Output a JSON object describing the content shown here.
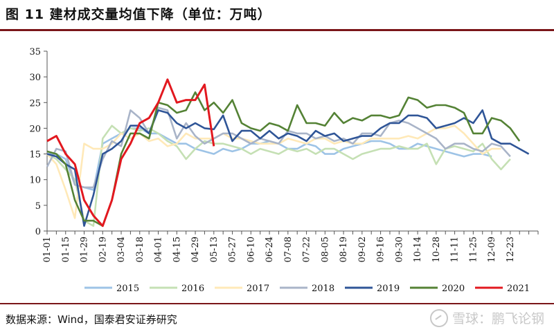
{
  "figure": {
    "title": "图 11  建材成交量均值下降（单位：万吨）",
    "source": "数据来源：Wind，国泰君安证券研究",
    "watermark": "雪球：鹏飞论钢"
  },
  "chart_data": {
    "type": "line",
    "title": "",
    "xlabel": "",
    "ylabel": "",
    "ylim": [
      0,
      35
    ],
    "yticks": [
      0,
      5,
      10,
      15,
      20,
      25,
      30,
      35
    ],
    "x_tick_labels": [
      "01-01",
      "01-15",
      "01-29",
      "02-19",
      "03-04",
      "03-18",
      "04-01",
      "04-15",
      "04-29",
      "05-13",
      "05-27",
      "06-10",
      "06-24",
      "07-08",
      "07-22",
      "08-05",
      "08-19",
      "09-02",
      "09-16",
      "09-30",
      "10-14",
      "10-28",
      "11-11",
      "11-25",
      "12-09",
      "12-23"
    ],
    "grid": false,
    "legend_position": "bottom",
    "series": [
      {
        "name": "2015",
        "color": "#9dc3e6",
        "values": [
          15,
          15,
          14,
          9,
          8.5,
          8,
          17,
          18,
          19,
          20,
          20,
          19,
          19,
          18,
          17,
          17,
          16,
          15.5,
          15,
          16,
          15.5,
          16,
          17,
          17,
          17.5,
          17,
          16,
          16,
          17,
          16.5,
          15,
          15,
          16,
          16.5,
          17,
          17.5,
          17.5,
          17,
          16,
          16,
          17,
          16.5,
          16,
          15.5,
          15,
          14.5,
          15,
          15,
          14.5
        ]
      },
      {
        "name": "2016",
        "color": "#c5e0b4",
        "values": [
          15,
          14,
          12,
          10,
          2,
          1,
          18,
          20.5,
          19,
          20,
          19.5,
          20,
          19,
          17.5,
          16.5,
          14,
          16,
          17.5,
          17,
          17,
          16.5,
          16,
          15,
          16,
          15.5,
          15,
          16,
          15.5,
          16,
          15,
          16,
          16,
          15,
          14,
          15,
          15.5,
          16,
          16,
          16.5,
          16,
          16,
          17,
          13,
          16,
          16.5,
          16,
          15.5,
          17,
          14,
          12,
          14
        ]
      },
      {
        "name": "2017",
        "color": "#ffe9b8",
        "values": [
          15,
          13,
          8,
          2.5,
          17,
          16,
          16,
          17,
          19,
          18,
          19,
          17.5,
          18,
          16.5,
          17,
          19,
          18,
          18,
          18,
          19,
          18,
          18,
          17.5,
          17,
          17,
          17,
          18,
          17.5,
          17,
          18,
          18,
          17,
          17.5,
          17,
          17,
          18,
          18,
          18,
          18,
          18.5,
          18,
          19,
          20,
          20,
          20.5,
          19,
          17,
          15,
          16,
          16
        ]
      },
      {
        "name": "2018",
        "color": "#a9b4c8",
        "values": [
          12.5,
          16,
          15.5,
          9,
          8.5,
          8.5,
          14,
          17.5,
          16.5,
          23.5,
          22,
          19,
          24,
          23.5,
          18,
          21,
          18.5,
          17,
          18,
          19,
          19,
          18,
          17,
          18,
          17.5,
          17,
          19.5,
          19,
          19,
          18,
          18.5,
          17.5,
          18,
          17,
          19,
          19,
          18.5,
          21,
          21.5,
          21,
          20,
          19,
          18,
          16,
          17,
          17,
          16,
          15.5,
          17,
          16.5,
          14.5
        ]
      },
      {
        "name": "2019",
        "color": "#2f5597",
        "values": [
          15,
          14.5,
          13,
          12,
          1,
          7,
          15,
          16,
          17.5,
          20.5,
          20.5,
          19,
          23.5,
          23,
          21,
          20,
          21,
          20,
          19.8,
          22.5,
          17.5,
          19.5,
          19.5,
          18,
          19.5,
          18,
          19,
          18.5,
          17.5,
          19.5,
          18.5,
          19,
          17.5,
          18,
          18.5,
          18.5,
          20,
          21,
          21,
          22.5,
          22.5,
          22,
          20,
          20.5,
          21,
          22,
          21,
          23.5,
          18,
          17,
          17,
          16,
          15
        ]
      },
      {
        "name": "2020",
        "color": "#548235",
        "values": [
          15.5,
          15,
          13,
          6,
          2,
          2,
          1,
          6,
          15,
          19,
          19,
          18,
          25,
          24.5,
          23,
          23.5,
          27,
          23.5,
          25,
          23,
          25.5,
          21,
          20,
          19.5,
          21,
          20.5,
          19.5,
          24.5,
          21,
          21,
          20.5,
          23,
          21,
          22,
          21.5,
          22.5,
          22.5,
          22,
          22.5,
          26,
          25.5,
          24,
          24.5,
          24.5,
          24,
          23,
          19,
          19,
          22,
          21.5,
          20,
          17.5
        ]
      },
      {
        "name": "2021",
        "color": "#e2181f",
        "values": [
          17.5,
          18.5,
          15,
          13,
          6,
          3,
          1,
          6,
          14,
          17,
          21,
          22,
          25,
          29.5,
          25,
          25.5,
          25.5,
          28.5,
          16.5
        ]
      }
    ]
  }
}
